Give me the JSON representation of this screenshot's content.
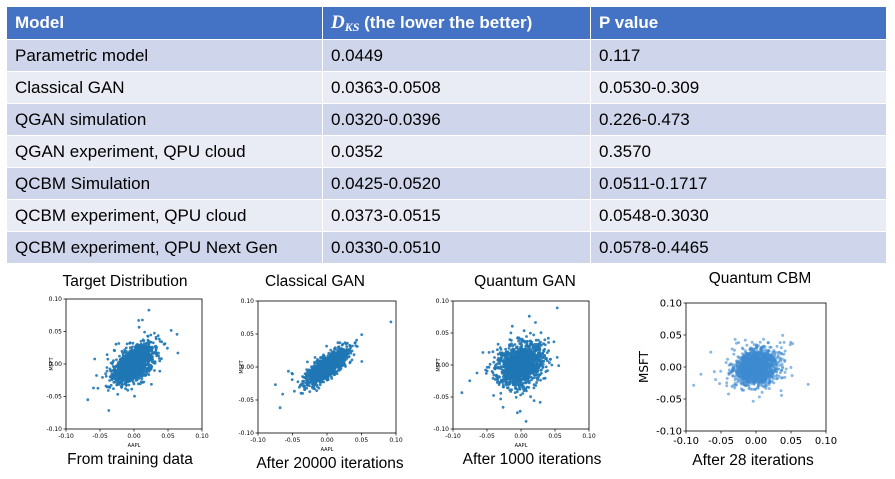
{
  "table": {
    "headers": {
      "model": "Model",
      "dks_symbol": "D",
      "dks_subscript": "KS",
      "dks_note": " (the lower the better)",
      "p_value": "P value"
    },
    "rows": [
      {
        "model": "Parametric model",
        "dks": "0.0449",
        "p": "0.117"
      },
      {
        "model": "Classical GAN",
        "dks": "0.0363-0.0508",
        "p": "0.0530-0.309"
      },
      {
        "model": "QGAN simulation",
        "dks": "0.0320-0.0396",
        "p": "0.226-0.473"
      },
      {
        "model": "QGAN experiment, QPU cloud",
        "dks": "0.0352",
        "p": "0.3570"
      },
      {
        "model": "QCBM Simulation",
        "dks": "0.0425-0.0520",
        "p": "0.0511-0.1717"
      },
      {
        "model": "QCBM experiment, QPU cloud",
        "dks": "0.0373-0.0515",
        "p": "0.0548-0.3030"
      },
      {
        "model": "QCBM experiment, QPU Next Gen",
        "dks": "0.0330-0.0510",
        "p": "0.0578-0.4465"
      }
    ]
  },
  "plots": [
    {
      "title": "Target Distribution",
      "caption": "From training data"
    },
    {
      "title": "Classical GAN",
      "caption": "After 20000 iterations"
    },
    {
      "title": "Quantum GAN",
      "caption": "After 1000 iterations"
    },
    {
      "title": "Quantum CBM",
      "caption": "After 28 iterations"
    }
  ],
  "chart_data": [
    {
      "type": "scatter",
      "xlabel": "AAPL",
      "ylabel": "MSFT",
      "xlim": [
        -0.1,
        0.1
      ],
      "ylim": [
        -0.1,
        0.1
      ],
      "xticks": [
        "-0.10",
        "-0.05",
        "0.00",
        "0.05",
        "0.10"
      ],
      "yticks": [
        "0.10",
        "0.05",
        "0.00",
        "-0.05",
        "-0.10"
      ],
      "spread": {
        "x": 0.014,
        "y": 0.014,
        "corr": 0.55
      },
      "color": "#1f77b4"
    },
    {
      "type": "scatter",
      "xlabel": "AAPL",
      "ylabel": "MSFT",
      "xlim": [
        -0.1,
        0.1
      ],
      "ylim": [
        -0.1,
        0.1
      ],
      "xticks": [
        "-0.10",
        "-0.05",
        "0.00",
        "0.05",
        "0.10"
      ],
      "yticks": [
        "0.10",
        "0.05",
        "0.00",
        "-0.05",
        "-0.10"
      ],
      "spread": {
        "x": 0.013,
        "y": 0.012,
        "corr": 0.75
      },
      "color": "#1f77b4"
    },
    {
      "type": "scatter",
      "xlabel": "AAPL",
      "ylabel": "MSFT",
      "xlim": [
        -0.1,
        0.1
      ],
      "ylim": [
        -0.1,
        0.1
      ],
      "xticks": [
        "-0.10",
        "-0.05",
        "0.00",
        "0.05",
        "0.10"
      ],
      "yticks": [
        "0.10",
        "0.05",
        "0.00",
        "-0.05",
        "-0.10"
      ],
      "spread": {
        "x": 0.016,
        "y": 0.016,
        "corr": 0.2
      },
      "color": "#1f77b4"
    },
    {
      "type": "scatter",
      "xlabel": "",
      "ylabel": "MSFT",
      "xlim": [
        -0.1,
        0.1
      ],
      "ylim": [
        -0.1,
        0.1
      ],
      "xticks": [
        "-0.10",
        "-0.05",
        "0.00",
        "0.05",
        "0.10"
      ],
      "yticks": [
        "0.10",
        "0.05",
        "0.00",
        "-0.05",
        "-0.10"
      ],
      "spread": {
        "x": 0.015,
        "y": 0.014,
        "corr": 0.2
      },
      "color": "#3d8bd1"
    }
  ]
}
